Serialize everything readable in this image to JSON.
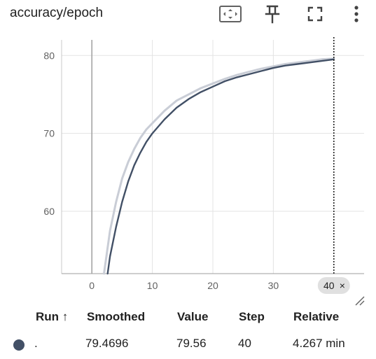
{
  "card": {
    "title": "accuracy/epoch"
  },
  "toolbar": {
    "fit_icon": "fit-domain-icon",
    "pin_icon": "pin-icon",
    "fullscreen_icon": "fullscreen-icon",
    "more_icon": "more-vert-icon"
  },
  "chart_data": {
    "type": "line",
    "title": "",
    "xlabel": "",
    "ylabel": "",
    "xlim": [
      -5,
      45
    ],
    "ylim": [
      52,
      82
    ],
    "x_ticks": [
      0,
      10,
      20,
      30
    ],
    "y_ticks": [
      60,
      70,
      80
    ],
    "x_tick_labels": [
      "0",
      "10",
      "20",
      "30"
    ],
    "y_tick_labels": [
      "60",
      "70",
      "80"
    ],
    "grid": true,
    "hover_step_label": "40",
    "hover_close_symbol": "×",
    "series": [
      {
        "role": "raw",
        "color": "#c9cdd6",
        "x": [
          2,
          3,
          4,
          5,
          6,
          7,
          8,
          9,
          10,
          12,
          14,
          16,
          18,
          20,
          22,
          24,
          26,
          28,
          30,
          32,
          34,
          36,
          38,
          40
        ],
        "y": [
          52,
          57.5,
          61.2,
          64.2,
          66.3,
          68.0,
          69.4,
          70.5,
          71.3,
          72.9,
          74.2,
          75.0,
          75.8,
          76.4,
          77.0,
          77.5,
          77.9,
          78.3,
          78.6,
          78.9,
          79.1,
          79.3,
          79.5,
          79.6
        ]
      },
      {
        "role": "smoothed",
        "color": "#425066",
        "x": [
          2.6,
          3,
          4,
          5,
          6,
          7,
          8,
          9,
          10,
          12,
          14,
          16,
          18,
          20,
          22,
          24,
          26,
          28,
          30,
          32,
          34,
          36,
          38,
          40
        ],
        "y": [
          52,
          54.2,
          58.0,
          61.2,
          63.8,
          65.9,
          67.5,
          68.9,
          70.0,
          71.8,
          73.3,
          74.4,
          75.3,
          76.0,
          76.7,
          77.2,
          77.6,
          78.0,
          78.4,
          78.7,
          78.9,
          79.1,
          79.3,
          79.5
        ]
      }
    ],
    "hover_x": 40
  },
  "table": {
    "headers": {
      "run": "Run ↑",
      "smoothed": "Smoothed",
      "value": "Value",
      "step": "Step",
      "relative": "Relative"
    },
    "rows": [
      {
        "run_color": "#425066",
        "run": ".",
        "smoothed": "79.4696",
        "value": "79.56",
        "step": "40",
        "relative": "4.267 min"
      }
    ]
  }
}
